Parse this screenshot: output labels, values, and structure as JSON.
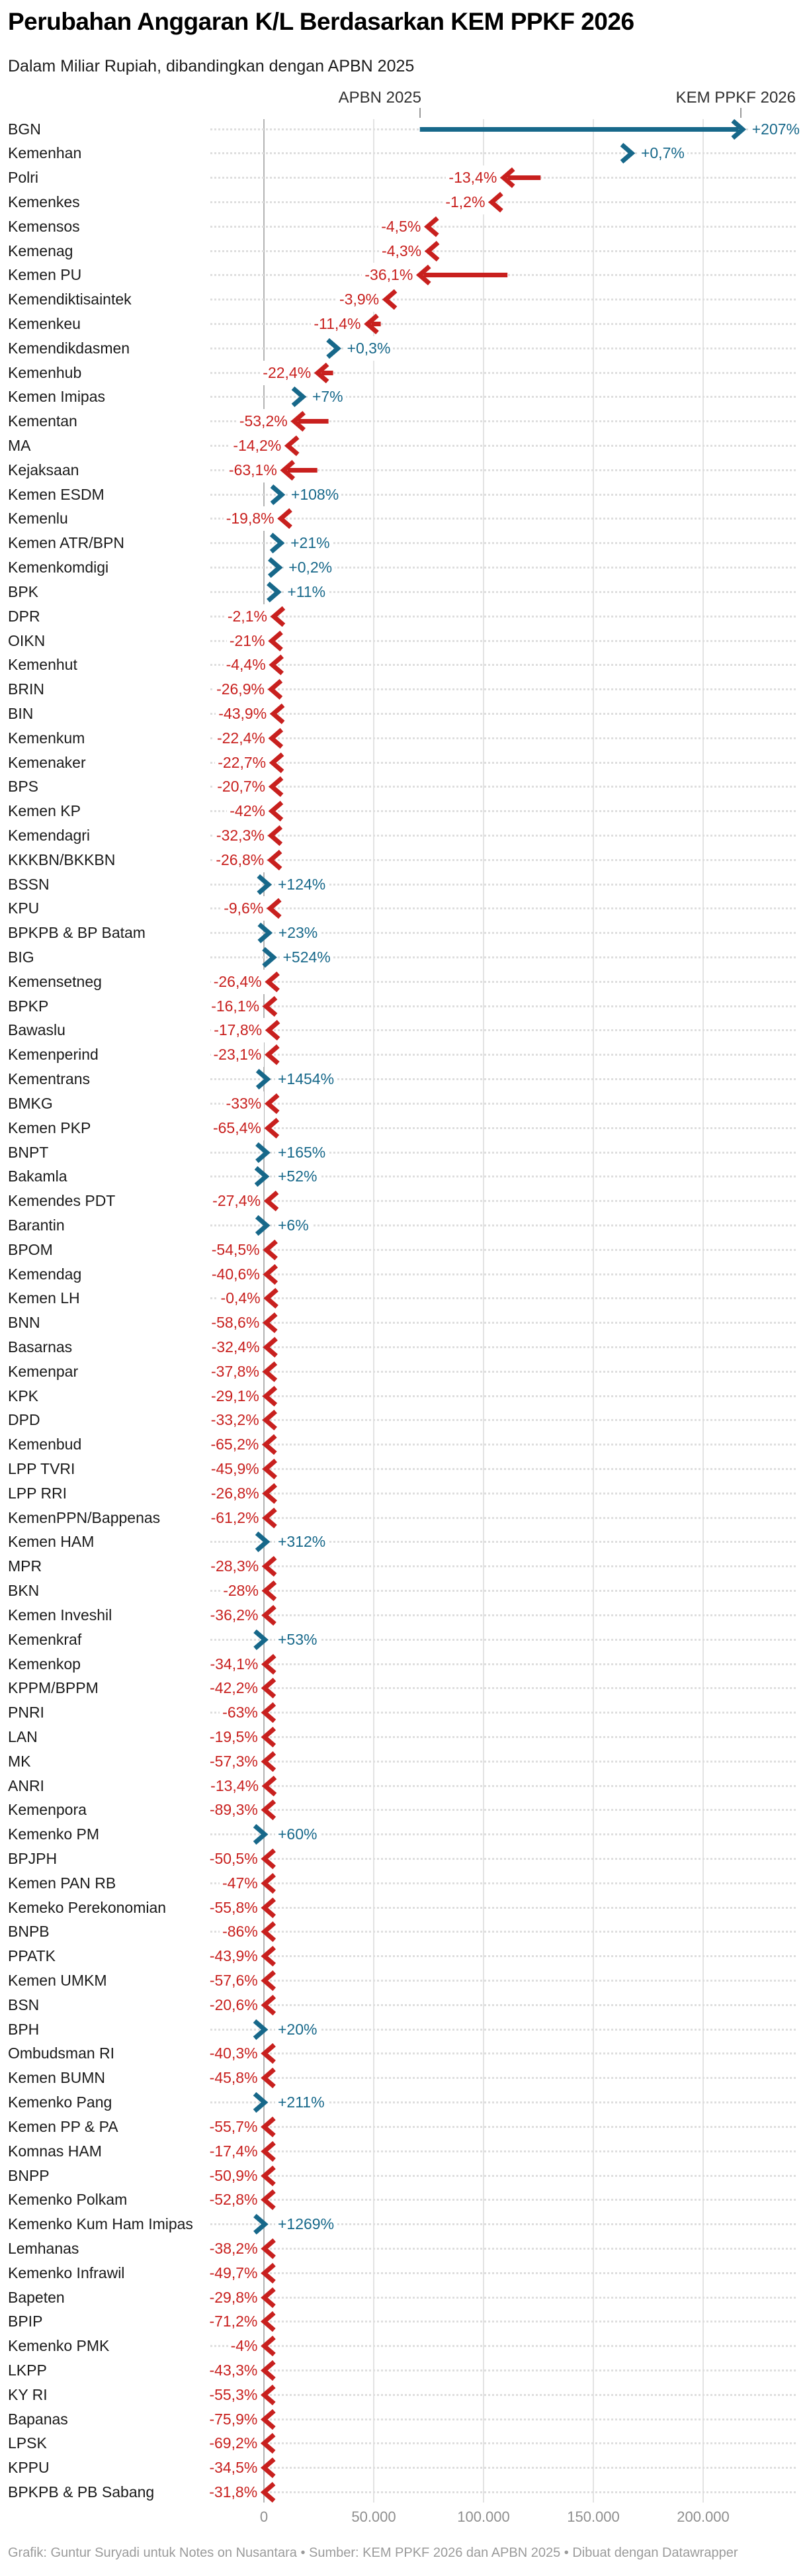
{
  "header": {
    "title": "Perubahan Anggaran K/L Berdasarkan KEM PPKF 2026",
    "subtitle": "Dalam Miliar Rupiah, dibandingkan dengan APBN 2025"
  },
  "footer": {
    "credit": "Grafik: Guntur Suryadi untuk Notes on Nusantara • Sumber: KEM PPKF 2026 dan APBN 2025 • Dibuat dengan Datawrapper"
  },
  "chart_data": {
    "type": "arrow-range",
    "title": "Perubahan Anggaran K/L Berdasarkan KEM PPKF 2026",
    "subtitle": "Dalam Miliar Rupiah, dibandingkan dengan APBN 2025",
    "unit": "Miliar Rupiah",
    "col_headers": [
      "APBN 2025",
      "KEM PPKF 2026"
    ],
    "legend_position": "top",
    "grid": true,
    "colors": {
      "increase": "#17688a",
      "decrease": "#c8201e"
    },
    "x_axis": {
      "range": [
        0,
        242000
      ],
      "ticks": [
        0,
        50000,
        100000,
        150000,
        200000
      ],
      "tick_labels": [
        "0",
        "50.000",
        "100.000",
        "150.000",
        "200.000"
      ]
    },
    "rows": [
      {
        "label": "BGN",
        "change": "+207%",
        "apbn_2025": 71000,
        "kem_ppkf_2026": 218000
      },
      {
        "label": "Kemenhan",
        "change": "+0,7%",
        "apbn_2025": 166300,
        "kem_ppkf_2026": 167460
      },
      {
        "label": "Polri",
        "change": "-13,4%",
        "apbn_2025": 126000,
        "kem_ppkf_2026": 109120
      },
      {
        "label": "Kemenkes",
        "change": "-1,2%",
        "apbn_2025": 105000,
        "kem_ppkf_2026": 103740
      },
      {
        "label": "Kemensos",
        "change": "-4,5%",
        "apbn_2025": 78000,
        "kem_ppkf_2026": 74490
      },
      {
        "label": "Kemenag",
        "change": "-4,3%",
        "apbn_2025": 78100,
        "kem_ppkf_2026": 74740
      },
      {
        "label": "Kemen PU",
        "change": "-36,1%",
        "apbn_2025": 110900,
        "kem_ppkf_2026": 70860
      },
      {
        "label": "Kemendiktisaintek",
        "change": "-3,9%",
        "apbn_2025": 57700,
        "kem_ppkf_2026": 55450
      },
      {
        "label": "Kemenkeu",
        "change": "-11,4%",
        "apbn_2025": 53200,
        "kem_ppkf_2026": 47140
      },
      {
        "label": "Kemendikdasmen",
        "change": "+0,3%",
        "apbn_2025": 33500,
        "kem_ppkf_2026": 33600
      },
      {
        "label": "Kemenhub",
        "change": "-22,4%",
        "apbn_2025": 31500,
        "kem_ppkf_2026": 24440
      },
      {
        "label": "Kemen Imipas",
        "change": "+7%",
        "apbn_2025": 16600,
        "kem_ppkf_2026": 17760
      },
      {
        "label": "Kementan",
        "change": "-53,2%",
        "apbn_2025": 29400,
        "kem_ppkf_2026": 13760
      },
      {
        "label": "MA",
        "change": "-14,2%",
        "apbn_2025": 12700,
        "kem_ppkf_2026": 10900
      },
      {
        "label": "Kejaksaan",
        "change": "-63,1%",
        "apbn_2025": 24300,
        "kem_ppkf_2026": 8970
      },
      {
        "label": "Kemen ESDM",
        "change": "+108%",
        "apbn_2025": 3900,
        "kem_ppkf_2026": 8110
      },
      {
        "label": "Kemenlu",
        "change": "-19,8%",
        "apbn_2025": 9600,
        "kem_ppkf_2026": 7700
      },
      {
        "label": "Kemen ATR/BPN",
        "change": "+21%",
        "apbn_2025": 6500,
        "kem_ppkf_2026": 7870
      },
      {
        "label": "Kemenkomdigi",
        "change": "+0,2%",
        "apbn_2025": 7000,
        "kem_ppkf_2026": 7010
      },
      {
        "label": "BPK",
        "change": "+11%",
        "apbn_2025": 5800,
        "kem_ppkf_2026": 6440
      },
      {
        "label": "DPR",
        "change": "-2,1%",
        "apbn_2025": 4600,
        "kem_ppkf_2026": 4500
      },
      {
        "label": "OIKN",
        "change": "-21%",
        "apbn_2025": 4400,
        "kem_ppkf_2026": 3480
      },
      {
        "label": "Kemenhut",
        "change": "-4,4%",
        "apbn_2025": 4000,
        "kem_ppkf_2026": 3820
      },
      {
        "label": "BRIN",
        "change": "-26,9%",
        "apbn_2025": 4500,
        "kem_ppkf_2026": 3290
      },
      {
        "label": "BIN",
        "change": "-43,9%",
        "apbn_2025": 7600,
        "kem_ppkf_2026": 4260
      },
      {
        "label": "Kemenkum",
        "change": "-22,4%",
        "apbn_2025": 4600,
        "kem_ppkf_2026": 3570
      },
      {
        "label": "Kemenaker",
        "change": "-22,7%",
        "apbn_2025": 5100,
        "kem_ppkf_2026": 3940
      },
      {
        "label": "BPS",
        "change": "-20,7%",
        "apbn_2025": 4600,
        "kem_ppkf_2026": 3650
      },
      {
        "label": "Kemen KP",
        "change": "-42%",
        "apbn_2025": 6200,
        "kem_ppkf_2026": 3600
      },
      {
        "label": "Kemendagri",
        "change": "-32,3%",
        "apbn_2025": 4800,
        "kem_ppkf_2026": 3250
      },
      {
        "label": "KKKBN/BKKBN",
        "change": "-26,8%",
        "apbn_2025": 4200,
        "kem_ppkf_2026": 3070
      },
      {
        "label": "BSSN",
        "change": "+124%",
        "apbn_2025": 900,
        "kem_ppkf_2026": 2020
      },
      {
        "label": "KPU",
        "change": "-9,6%",
        "apbn_2025": 3100,
        "kem_ppkf_2026": 2800
      },
      {
        "label": "BPKPB & BP Batam",
        "change": "+23%",
        "apbn_2025": 1900,
        "kem_ppkf_2026": 2340
      },
      {
        "label": "BIG",
        "change": "+524%",
        "apbn_2025": 700,
        "kem_ppkf_2026": 4370
      },
      {
        "label": "Kemensetneg",
        "change": "-26,4%",
        "apbn_2025": 2700,
        "kem_ppkf_2026": 1990
      },
      {
        "label": "BPKP",
        "change": "-16,1%",
        "apbn_2025": 1100,
        "kem_ppkf_2026": 920
      },
      {
        "label": "Bawaslu",
        "change": "-17,8%",
        "apbn_2025": 2600,
        "kem_ppkf_2026": 2140
      },
      {
        "label": "Kemenperind",
        "change": "-23,1%",
        "apbn_2025": 2500,
        "kem_ppkf_2026": 1920
      },
      {
        "label": "Kementrans",
        "change": "+1454%",
        "apbn_2025": 100,
        "kem_ppkf_2026": 1550
      },
      {
        "label": "BMKG",
        "change": "-33%",
        "apbn_2025": 2800,
        "kem_ppkf_2026": 1880
      },
      {
        "label": "Kemen PKP",
        "change": "-65,4%",
        "apbn_2025": 5100,
        "kem_ppkf_2026": 1760
      },
      {
        "label": "BNPT",
        "change": "+165%",
        "apbn_2025": 500,
        "kem_ppkf_2026": 1330
      },
      {
        "label": "Bakamla",
        "change": "+52%",
        "apbn_2025": 600,
        "kem_ppkf_2026": 910
      },
      {
        "label": "Kemendes PDT",
        "change": "-27,4%",
        "apbn_2025": 2100,
        "kem_ppkf_2026": 1520
      },
      {
        "label": "Barantin",
        "change": "+6%",
        "apbn_2025": 1200,
        "kem_ppkf_2026": 1270
      },
      {
        "label": "BPOM",
        "change": "-54,5%",
        "apbn_2025": 2400,
        "kem_ppkf_2026": 1090
      },
      {
        "label": "Kemendag",
        "change": "-40,6%",
        "apbn_2025": 1900,
        "kem_ppkf_2026": 1130
      },
      {
        "label": "Kemen LH",
        "change": "-0,4%",
        "apbn_2025": 1400,
        "kem_ppkf_2026": 1390
      },
      {
        "label": "BNN",
        "change": "-58,6%",
        "apbn_2025": 2400,
        "kem_ppkf_2026": 990
      },
      {
        "label": "Basarnas",
        "change": "-32,4%",
        "apbn_2025": 1600,
        "kem_ppkf_2026": 1080
      },
      {
        "label": "Kemenpar",
        "change": "-37,8%",
        "apbn_2025": 1400,
        "kem_ppkf_2026": 870
      },
      {
        "label": "KPK",
        "change": "-29,1%",
        "apbn_2025": 1200,
        "kem_ppkf_2026": 850
      },
      {
        "label": "DPD",
        "change": "-33,2%",
        "apbn_2025": 1200,
        "kem_ppkf_2026": 800
      },
      {
        "label": "Kemenbud",
        "change": "-65,2%",
        "apbn_2025": 2000,
        "kem_ppkf_2026": 700
      },
      {
        "label": "LPP TVRI",
        "change": "-45,9%",
        "apbn_2025": 1500,
        "kem_ppkf_2026": 810
      },
      {
        "label": "LPP RRI",
        "change": "-26,8%",
        "apbn_2025": 1100,
        "kem_ppkf_2026": 810
      },
      {
        "label": "KemenPPN/Bappenas",
        "change": "-61,2%",
        "apbn_2025": 1900,
        "kem_ppkf_2026": 740
      },
      {
        "label": "Kemen HAM",
        "change": "+312%",
        "apbn_2025": 300,
        "kem_ppkf_2026": 1240
      },
      {
        "label": "MPR",
        "change": "-28,3%",
        "apbn_2025": 900,
        "kem_ppkf_2026": 650
      },
      {
        "label": "BKN",
        "change": "-28%",
        "apbn_2025": 800,
        "kem_ppkf_2026": 580
      },
      {
        "label": "Kemen Inveshil",
        "change": "-36,2%",
        "apbn_2025": 700,
        "kem_ppkf_2026": 450
      },
      {
        "label": "Kemenkraf",
        "change": "+53%",
        "apbn_2025": 300,
        "kem_ppkf_2026": 460
      },
      {
        "label": "Kemenkop",
        "change": "-34,1%",
        "apbn_2025": 600,
        "kem_ppkf_2026": 400
      },
      {
        "label": "KPPM/BPPM",
        "change": "-42,2%",
        "apbn_2025": 500,
        "kem_ppkf_2026": 290
      },
      {
        "label": "PNRI",
        "change": "-63%",
        "apbn_2025": 700,
        "kem_ppkf_2026": 260
      },
      {
        "label": "LAN",
        "change": "-19,5%",
        "apbn_2025": 300,
        "kem_ppkf_2026": 240
      },
      {
        "label": "MK",
        "change": "-57,3%",
        "apbn_2025": 600,
        "kem_ppkf_2026": 260
      },
      {
        "label": "ANRI",
        "change": "-13,4%",
        "apbn_2025": 700,
        "kem_ppkf_2026": 610
      },
      {
        "label": "Kemenpora",
        "change": "-89,3%",
        "apbn_2025": 2300,
        "kem_ppkf_2026": 250
      },
      {
        "label": "Kemenko PM",
        "change": "+60%",
        "apbn_2025": 200,
        "kem_ppkf_2026": 320
      },
      {
        "label": "BPJPH",
        "change": "-50,5%",
        "apbn_2025": 400,
        "kem_ppkf_2026": 200
      },
      {
        "label": "Kemen PAN RB",
        "change": "-47%",
        "apbn_2025": 400,
        "kem_ppkf_2026": 210
      },
      {
        "label": "Kemeko Perekonomian",
        "change": "-55,8%",
        "apbn_2025": 500,
        "kem_ppkf_2026": 220
      },
      {
        "label": "BNPB",
        "change": "-86%",
        "apbn_2025": 1700,
        "kem_ppkf_2026": 240
      },
      {
        "label": "PPATK",
        "change": "-43,9%",
        "apbn_2025": 400,
        "kem_ppkf_2026": 220
      },
      {
        "label": "Kemen UMKM",
        "change": "-57,6%",
        "apbn_2025": 500,
        "kem_ppkf_2026": 210
      },
      {
        "label": "BSN",
        "change": "-20,6%",
        "apbn_2025": 300,
        "kem_ppkf_2026": 240
      },
      {
        "label": "BPH",
        "change": "+20%",
        "apbn_2025": 250,
        "kem_ppkf_2026": 300
      },
      {
        "label": "Ombudsman RI",
        "change": "-40,3%",
        "apbn_2025": 300,
        "kem_ppkf_2026": 180
      },
      {
        "label": "Kemen BUMN",
        "change": "-45,8%",
        "apbn_2025": 300,
        "kem_ppkf_2026": 160
      },
      {
        "label": "Kemenko Pang",
        "change": "+211%",
        "apbn_2025": 100,
        "kem_ppkf_2026": 310
      },
      {
        "label": "Kemen PP & PA",
        "change": "-55,7%",
        "apbn_2025": 300,
        "kem_ppkf_2026": 130
      },
      {
        "label": "Komnas HAM",
        "change": "-17,4%",
        "apbn_2025": 200,
        "kem_ppkf_2026": 170
      },
      {
        "label": "BNPP",
        "change": "-50,9%",
        "apbn_2025": 300,
        "kem_ppkf_2026": 150
      },
      {
        "label": "Kemenko Polkam",
        "change": "-52,8%",
        "apbn_2025": 300,
        "kem_ppkf_2026": 140
      },
      {
        "label": "Kemenko Kum Ham Imipas",
        "change": "+1269%",
        "apbn_2025": 30,
        "kem_ppkf_2026": 410
      },
      {
        "label": "Lemhanas",
        "change": "-38,2%",
        "apbn_2025": 300,
        "kem_ppkf_2026": 190
      },
      {
        "label": "Kemenko Infrawil",
        "change": "-49,7%",
        "apbn_2025": 300,
        "kem_ppkf_2026": 150
      },
      {
        "label": "Bapeten",
        "change": "-29,8%",
        "apbn_2025": 200,
        "kem_ppkf_2026": 140
      },
      {
        "label": "BPIP",
        "change": "-71,2%",
        "apbn_2025": 300,
        "kem_ppkf_2026": 90
      },
      {
        "label": "Kemenko PMK",
        "change": "-4%",
        "apbn_2025": 150,
        "kem_ppkf_2026": 140
      },
      {
        "label": "LKPP",
        "change": "-43,3%",
        "apbn_2025": 200,
        "kem_ppkf_2026": 110
      },
      {
        "label": "KY RI",
        "change": "-55,3%",
        "apbn_2025": 200,
        "kem_ppkf_2026": 90
      },
      {
        "label": "Bapanas",
        "change": "-75,9%",
        "apbn_2025": 400,
        "kem_ppkf_2026": 100
      },
      {
        "label": "LPSK",
        "change": "-69,2%",
        "apbn_2025": 200,
        "kem_ppkf_2026": 60
      },
      {
        "label": "KPPU",
        "change": "-34,5%",
        "apbn_2025": 140,
        "kem_ppkf_2026": 90
      },
      {
        "label": "BPKPB & PB Sabang",
        "change": "-31,8%",
        "apbn_2025": 60,
        "kem_ppkf_2026": 40
      }
    ]
  }
}
